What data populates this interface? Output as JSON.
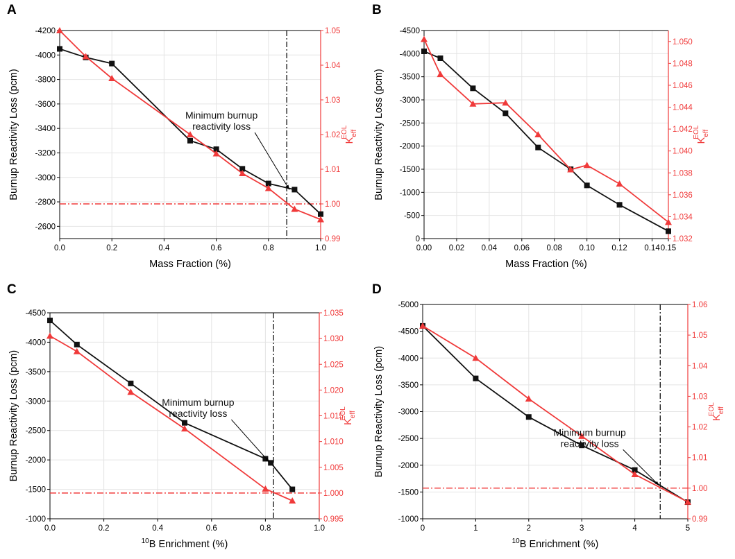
{
  "colors": {
    "left": "#111111",
    "right": "#f03a3a",
    "grid": "#e4e4e4",
    "threshold": "#f03a3a",
    "vline": "#111111"
  },
  "chart_data": [
    {
      "id": "A",
      "panel_label": "A",
      "type": "line",
      "xlabel": "Mass Fraction (%)",
      "ylabel_left": "Burnup Reactivity Loss (pcm)",
      "ylabel_right": {
        "base": "K",
        "sub": "eff",
        "sup": "EOL"
      },
      "xlim": [
        0,
        1.0
      ],
      "ylim_left": [
        -2500,
        -4200
      ],
      "ylim_right": [
        0.99,
        1.05
      ],
      "xticks": [
        0.0,
        0.2,
        0.4,
        0.6,
        0.8,
        1.0
      ],
      "xtick_labels": [
        "0.0",
        "0.2",
        "0.4",
        "0.6",
        "0.8",
        "1.0"
      ],
      "yticks_left": [
        -4200,
        -4000,
        -3800,
        -3600,
        -3400,
        -3200,
        -3000,
        -2800,
        -2600
      ],
      "ytick_labels_left": [
        "-4200",
        "-4000",
        "-3800",
        "-3600",
        "-3400",
        "-3200",
        "-3000",
        "-2800",
        "-2600"
      ],
      "yticks_right": [
        0.99,
        1.0,
        1.01,
        1.02,
        1.03,
        1.04,
        1.05
      ],
      "ytick_labels_right": [
        "0.99",
        "1.00",
        "1.01",
        "1.02",
        "1.03",
        "1.04",
        "1.05"
      ],
      "series": [
        {
          "name": "Burnup Reactivity Loss",
          "axis": "left",
          "marker": "square",
          "x": [
            0.0,
            0.1,
            0.2,
            0.5,
            0.6,
            0.7,
            0.8,
            0.9,
            1.0
          ],
          "y": [
            -4050,
            -3980,
            -3930,
            -3300,
            -3230,
            -3070,
            -2950,
            -2900,
            -2700
          ]
        },
        {
          "name": "Keff EOL",
          "axis": "right",
          "marker": "triangle",
          "x": [
            0.0,
            0.1,
            0.2,
            0.5,
            0.6,
            0.7,
            0.8,
            0.9,
            1.0
          ],
          "y": [
            1.05,
            1.0425,
            1.0362,
            1.02,
            1.0145,
            1.0088,
            1.0045,
            0.9985,
            0.9955
          ]
        }
      ],
      "threshold_right": 1.0,
      "vline_x": 0.87,
      "annotation": {
        "lines": [
          "Minimum burnup",
          "reactivity loss"
        ],
        "text_x": 0.62,
        "text_y": -3480,
        "arrow_to": [
          0.88,
          -2900
        ]
      }
    },
    {
      "id": "B",
      "panel_label": "B",
      "type": "line",
      "xlabel": "Mass Fraction (%)",
      "ylabel_left": "Burnup Reactivity Loss (pcm)",
      "ylabel_right": {
        "base": "K",
        "sub": "eff",
        "sup": "EOL"
      },
      "xlim": [
        0,
        0.15
      ],
      "ylim_left": [
        0,
        -4500
      ],
      "ylim_right": [
        1.032,
        1.051
      ],
      "xticks": [
        0.0,
        0.02,
        0.04,
        0.06,
        0.08,
        0.1,
        0.12,
        0.14,
        0.15
      ],
      "xtick_labels": [
        "0.00",
        "0.02",
        "0.04",
        "0.06",
        "0.08",
        "0.10",
        "0.12",
        "0.14",
        "0.15"
      ],
      "yticks_left": [
        -4500,
        -4000,
        -3500,
        -3000,
        -2500,
        -2000,
        -1500,
        -1000,
        -500,
        0
      ],
      "ytick_labels_left": [
        "-4500",
        "-4000",
        "-3500",
        "-3000",
        "-2500",
        "-2000",
        "-1500",
        "-1000",
        "-500",
        "0"
      ],
      "yticks_right": [
        1.032,
        1.034,
        1.036,
        1.038,
        1.04,
        1.042,
        1.044,
        1.046,
        1.048,
        1.05
      ],
      "ytick_labels_right": [
        "1.032",
        "1.034",
        "1.036",
        "1.038",
        "1.040",
        "1.042",
        "1.044",
        "1.046",
        "1.048",
        "1.050"
      ],
      "series": [
        {
          "name": "Burnup Reactivity Loss",
          "axis": "left",
          "marker": "square",
          "x": [
            0.0,
            0.01,
            0.03,
            0.05,
            0.07,
            0.09,
            0.1,
            0.12,
            0.15
          ],
          "y": [
            -4050,
            -3900,
            -3250,
            -2710,
            -1970,
            -1500,
            -1150,
            -730,
            -160
          ]
        },
        {
          "name": "Keff EOL",
          "axis": "right",
          "marker": "triangle",
          "x": [
            0.0,
            0.01,
            0.03,
            0.05,
            0.07,
            0.09,
            0.1,
            0.12,
            0.15
          ],
          "y": [
            1.0502,
            1.047,
            1.0443,
            1.0444,
            1.0415,
            1.0383,
            1.0387,
            1.037,
            1.0335
          ]
        }
      ]
    },
    {
      "id": "C",
      "panel_label": "C",
      "type": "line",
      "xlabel_sup": "10",
      "xlabel": "B Enrichment (%)",
      "ylabel_left": "Burnup Reactivity Loss (pcm)",
      "ylabel_right": {
        "base": "K",
        "sub": "eff",
        "sup": "EOL"
      },
      "xlim": [
        0,
        1.0
      ],
      "ylim_left": [
        -1000,
        -4500
      ],
      "ylim_right": [
        0.995,
        1.035
      ],
      "xticks": [
        0.0,
        0.2,
        0.4,
        0.6,
        0.8,
        1.0
      ],
      "xtick_labels": [
        "0.0",
        "0.2",
        "0.4",
        "0.6",
        "0.8",
        "1.0"
      ],
      "yticks_left": [
        -4500,
        -4000,
        -3500,
        -3000,
        -2500,
        -2000,
        -1500,
        -1000
      ],
      "ytick_labels_left": [
        "-4500",
        "-4000",
        "-3500",
        "-3000",
        "-2500",
        "-2000",
        "-1500",
        "-1000"
      ],
      "yticks_right": [
        0.995,
        1.0,
        1.005,
        1.01,
        1.015,
        1.02,
        1.025,
        1.03,
        1.035
      ],
      "ytick_labels_right": [
        "0.995",
        "1.000",
        "1.005",
        "1.010",
        "1.015",
        "1.020",
        "1.025",
        "1.030",
        "1.035"
      ],
      "series": [
        {
          "name": "Burnup Reactivity Loss",
          "axis": "left",
          "marker": "square",
          "x": [
            0.0,
            0.1,
            0.3,
            0.5,
            0.8,
            0.82,
            0.9
          ],
          "y": [
            -4370,
            -3960,
            -3300,
            -2630,
            -2020,
            -1950,
            -1500
          ]
        },
        {
          "name": "Keff EOL",
          "axis": "right",
          "marker": "triangle",
          "x": [
            0.0,
            0.1,
            0.3,
            0.5,
            0.8,
            0.9
          ],
          "y": [
            1.0305,
            1.0275,
            1.0196,
            1.0125,
            1.0008,
            0.9985
          ]
        }
      ],
      "threshold_right": 1.0,
      "vline_x": 0.83,
      "annotation": {
        "lines": [
          "Minimum burnup",
          "reactivity loss"
        ],
        "text_x": 0.55,
        "text_y": -2920,
        "arrow_to": [
          0.815,
          -1960
        ]
      }
    },
    {
      "id": "D",
      "panel_label": "D",
      "type": "line",
      "xlabel_sup": "10",
      "xlabel": "B Enrichment (%)",
      "ylabel_left": "Burnup Reactivity Loss (pcm)",
      "ylabel_right": {
        "base": "K",
        "sub": "eff",
        "sup": "EOL"
      },
      "xlim": [
        0,
        5
      ],
      "ylim_left": [
        -1000,
        -5000
      ],
      "ylim_right": [
        0.99,
        1.06
      ],
      "xticks": [
        0,
        1,
        2,
        3,
        4,
        5
      ],
      "xtick_labels": [
        "0",
        "1",
        "2",
        "3",
        "4",
        "5"
      ],
      "yticks_left": [
        -5000,
        -4500,
        -4000,
        -3500,
        -3000,
        -2500,
        -2000,
        -1500,
        -1000
      ],
      "ytick_labels_left": [
        "-5000",
        "-4500",
        "-4000",
        "-3500",
        "-3000",
        "-2500",
        "-2000",
        "-1500",
        "-1000"
      ],
      "yticks_right": [
        0.99,
        1.0,
        1.01,
        1.02,
        1.03,
        1.04,
        1.05,
        1.06
      ],
      "ytick_labels_right": [
        "0.99",
        "1.00",
        "1.01",
        "1.02",
        "1.03",
        "1.04",
        "1.05",
        "1.06"
      ],
      "series": [
        {
          "name": "Burnup Reactivity Loss",
          "axis": "left",
          "marker": "square",
          "x": [
            0,
            1,
            2,
            3,
            4,
            5
          ],
          "y": [
            -4600,
            -3620,
            -2900,
            -2370,
            -1910,
            -1310
          ]
        },
        {
          "name": "Keff EOL",
          "axis": "right",
          "marker": "triangle",
          "x": [
            0,
            1,
            2,
            3,
            4,
            5
          ],
          "y": [
            1.053,
            1.0425,
            1.0292,
            1.017,
            1.0045,
            0.9955
          ]
        }
      ],
      "threshold_right": 1.0,
      "vline_x": 4.48,
      "annotation": {
        "lines": [
          "Minimum burnup",
          "reactivity loss"
        ],
        "text_x": 3.15,
        "text_y": -2550,
        "arrow_to": [
          4.46,
          -1620
        ]
      }
    }
  ]
}
